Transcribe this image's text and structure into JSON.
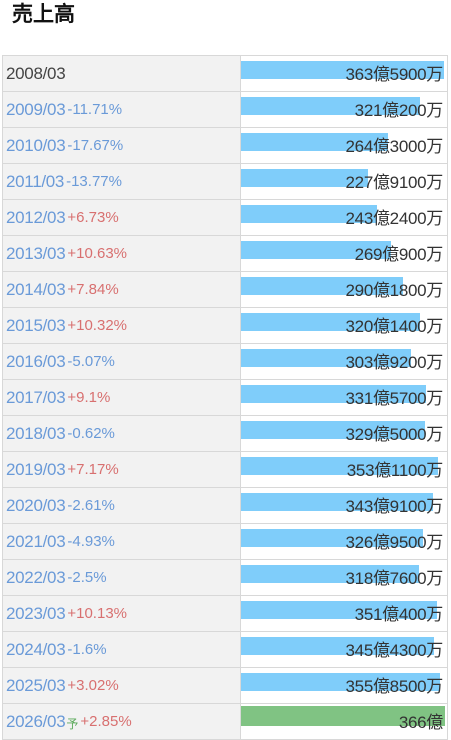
{
  "title": "売上高",
  "forecast_mark": "予",
  "chart_data": {
    "type": "bar",
    "title": "売上高",
    "unit": "万円",
    "max_value": 3639000,
    "rows": [
      {
        "year": "2008/03",
        "yoy": "",
        "value": 3635900,
        "label": "363億5900万",
        "forecast": false
      },
      {
        "year": "2009/03",
        "yoy": "-11.71%",
        "value": 3210200,
        "label": "321億200万",
        "forecast": false
      },
      {
        "year": "2010/03",
        "yoy": "-17.67%",
        "value": 2643000,
        "label": "264億3000万",
        "forecast": false
      },
      {
        "year": "2011/03",
        "yoy": "-13.77%",
        "value": 2279100,
        "label": "227億9100万",
        "forecast": false
      },
      {
        "year": "2012/03",
        "yoy": "+6.73%",
        "value": 2432400,
        "label": "243億2400万",
        "forecast": false
      },
      {
        "year": "2013/03",
        "yoy": "+10.63%",
        "value": 2690900,
        "label": "269億900万",
        "forecast": false
      },
      {
        "year": "2014/03",
        "yoy": "+7.84%",
        "value": 2901800,
        "label": "290億1800万",
        "forecast": false
      },
      {
        "year": "2015/03",
        "yoy": "+10.32%",
        "value": 3201400,
        "label": "320億1400万",
        "forecast": false
      },
      {
        "year": "2016/03",
        "yoy": "-5.07%",
        "value": 3039200,
        "label": "303億9200万",
        "forecast": false
      },
      {
        "year": "2017/03",
        "yoy": "+9.1%",
        "value": 3315700,
        "label": "331億5700万",
        "forecast": false
      },
      {
        "year": "2018/03",
        "yoy": "-0.62%",
        "value": 3295000,
        "label": "329億5000万",
        "forecast": false
      },
      {
        "year": "2019/03",
        "yoy": "+7.17%",
        "value": 3531100,
        "label": "353億1100万",
        "forecast": false
      },
      {
        "year": "2020/03",
        "yoy": "-2.61%",
        "value": 3439100,
        "label": "343億9100万",
        "forecast": false
      },
      {
        "year": "2021/03",
        "yoy": "-4.93%",
        "value": 3269500,
        "label": "326億9500万",
        "forecast": false
      },
      {
        "year": "2022/03",
        "yoy": "-2.5%",
        "value": 3187600,
        "label": "318億7600万",
        "forecast": false
      },
      {
        "year": "2023/03",
        "yoy": "+10.13%",
        "value": 3510400,
        "label": "351億400万",
        "forecast": false
      },
      {
        "year": "2024/03",
        "yoy": "-1.6%",
        "value": 3454300,
        "label": "345億4300万",
        "forecast": false
      },
      {
        "year": "2025/03",
        "yoy": "+3.02%",
        "value": 3558500,
        "label": "355億8500万",
        "forecast": false
      },
      {
        "year": "2026/03",
        "yoy": "+2.85%",
        "value": 3660000,
        "label": "366億",
        "forecast": true
      }
    ]
  }
}
